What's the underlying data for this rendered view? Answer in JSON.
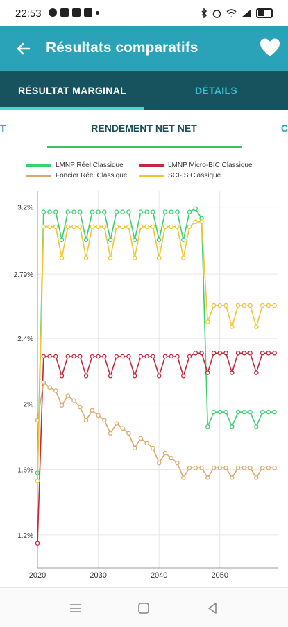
{
  "status": {
    "time": "22:53"
  },
  "app_bar": {
    "title": "Résultats comparatifs"
  },
  "tabs": [
    {
      "label": "RÉSULTAT MARGINAL"
    },
    {
      "label": "DÉTAILS"
    }
  ],
  "subtabs": {
    "left": "T",
    "center": "RENDEMENT NET NET",
    "right": "C"
  },
  "colors": {
    "app_bar": "#2aa3b8",
    "tabs_bar": "#16535f",
    "lmnp_reel": "#3ccf70",
    "lmnp_micro": "#c3283b",
    "foncier": "#d9a96a",
    "sci_is": "#f1c531"
  },
  "icons": {
    "back": "arrow-left-icon",
    "favorite": "heart-icon"
  },
  "chart_data": {
    "type": "line",
    "x": [
      2020,
      2021,
      2022,
      2023,
      2024,
      2025,
      2026,
      2027,
      2028,
      2029,
      2030,
      2031,
      2032,
      2033,
      2034,
      2035,
      2036,
      2037,
      2038,
      2039,
      2040,
      2041,
      2042,
      2043,
      2044,
      2045,
      2046,
      2047,
      2048,
      2049,
      2050,
      2051,
      2052,
      2053,
      2054,
      2055,
      2056,
      2057,
      2058,
      2059
    ],
    "xticks": [
      "2020",
      "2030",
      "2040",
      "2050"
    ],
    "yticks": [
      "1.2%",
      "1.6%",
      "2%",
      "2.4%",
      "2.79%",
      "3.2%"
    ],
    "ylim": [
      1.0,
      3.3
    ],
    "grid": true,
    "legend_position": "top",
    "series": [
      {
        "name": "LMNP Réel Classique",
        "color": "#3ccf70",
        "values": [
          1.58,
          3.17,
          3.17,
          3.17,
          3.0,
          3.17,
          3.17,
          3.17,
          3.0,
          3.17,
          3.17,
          3.17,
          3.0,
          3.17,
          3.17,
          3.17,
          3.0,
          3.17,
          3.17,
          3.17,
          3.0,
          3.17,
          3.17,
          3.17,
          3.0,
          3.17,
          3.19,
          3.13,
          1.86,
          1.95,
          1.95,
          1.95,
          1.86,
          1.95,
          1.95,
          1.95,
          1.86,
          1.95,
          1.95,
          1.95
        ]
      },
      {
        "name": "LMNP Micro-BIC Classique",
        "color": "#c3283b",
        "values": [
          1.15,
          2.29,
          2.29,
          2.29,
          2.17,
          2.29,
          2.29,
          2.29,
          2.17,
          2.29,
          2.29,
          2.29,
          2.17,
          2.29,
          2.29,
          2.29,
          2.17,
          2.29,
          2.29,
          2.29,
          2.17,
          2.29,
          2.29,
          2.29,
          2.17,
          2.29,
          2.31,
          2.31,
          2.19,
          2.31,
          2.31,
          2.31,
          2.19,
          2.31,
          2.31,
          2.31,
          2.19,
          2.31,
          2.31,
          2.31
        ]
      },
      {
        "name": "Foncier Réel Classique",
        "color": "#d9a96a",
        "values": [
          1.9,
          2.13,
          2.1,
          2.08,
          1.99,
          2.05,
          2.02,
          1.98,
          1.9,
          1.96,
          1.93,
          1.9,
          1.82,
          1.88,
          1.85,
          1.82,
          1.73,
          1.79,
          1.76,
          1.73,
          1.64,
          1.7,
          1.67,
          1.64,
          1.55,
          1.61,
          1.61,
          1.61,
          1.55,
          1.61,
          1.61,
          1.61,
          1.55,
          1.61,
          1.61,
          1.61,
          1.55,
          1.61,
          1.61,
          1.61
        ]
      },
      {
        "name": "SCI-IS Classique",
        "color": "#f1c531",
        "values": [
          1.53,
          3.08,
          3.08,
          3.08,
          2.89,
          3.08,
          3.08,
          3.08,
          2.89,
          3.08,
          3.08,
          3.08,
          2.89,
          3.08,
          3.08,
          3.08,
          2.89,
          3.08,
          3.08,
          3.08,
          2.89,
          3.08,
          3.08,
          3.08,
          2.89,
          3.08,
          3.11,
          3.11,
          2.5,
          2.6,
          2.6,
          2.6,
          2.47,
          2.6,
          2.6,
          2.6,
          2.47,
          2.6,
          2.6,
          2.6
        ]
      }
    ]
  }
}
